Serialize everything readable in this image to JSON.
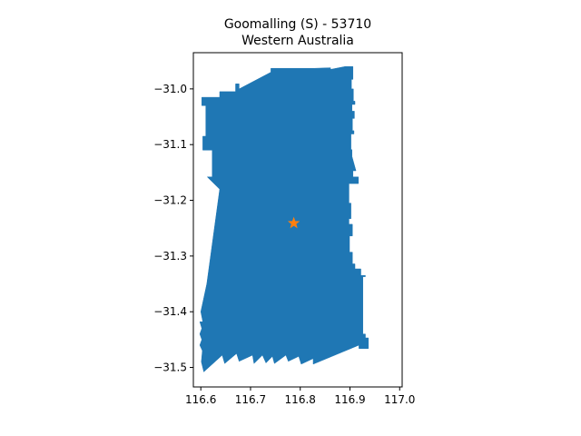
{
  "title": {
    "line1": "Goomalling (S) - 53710",
    "line2": "Western Australia"
  },
  "colors": {
    "region_fill": "#1f77b4",
    "marker": "#ff7f0e",
    "axes": "#000000",
    "background": "#ffffff"
  },
  "chart_data": {
    "type": "map",
    "title": "Goomalling (S) - 53710\nWestern Australia",
    "xlim": [
      116.585,
      117.005
    ],
    "ylim": [
      -31.535,
      -30.935
    ],
    "xticks": [
      116.6,
      116.7,
      116.8,
      116.9,
      117.0
    ],
    "xtick_labels": [
      "116.6",
      "116.7",
      "116.8",
      "116.9",
      "117.0"
    ],
    "yticks": [
      -31.0,
      -31.1,
      -31.2,
      -31.3,
      -31.4,
      -31.5
    ],
    "ytick_labels": [
      "−31.0",
      "−31.1",
      "−31.2",
      "−31.3",
      "−31.4",
      "−31.5"
    ],
    "grid": false,
    "region": {
      "name": "Goomalling (S)",
      "boundary": [
        [
          116.602,
          -31.015
        ],
        [
          116.638,
          -31.015
        ],
        [
          116.638,
          -31.005
        ],
        [
          116.67,
          -31.005
        ],
        [
          116.67,
          -30.991
        ],
        [
          116.677,
          -30.991
        ],
        [
          116.677,
          -31.0
        ],
        [
          116.741,
          -30.97
        ],
        [
          116.741,
          -30.963
        ],
        [
          116.829,
          -30.963
        ],
        [
          116.861,
          -30.962
        ],
        [
          116.861,
          -30.965
        ],
        [
          116.89,
          -30.96
        ],
        [
          116.906,
          -30.96
        ],
        [
          116.906,
          -30.983
        ],
        [
          116.903,
          -30.983
        ],
        [
          116.903,
          -31.0
        ],
        [
          116.907,
          -31.0
        ],
        [
          116.907,
          -31.022
        ],
        [
          116.91,
          -31.022
        ],
        [
          116.91,
          -31.028
        ],
        [
          116.904,
          -31.028
        ],
        [
          116.904,
          -31.04
        ],
        [
          116.909,
          -31.04
        ],
        [
          116.909,
          -31.053
        ],
        [
          116.905,
          -31.053
        ],
        [
          116.905,
          -31.075
        ],
        [
          116.908,
          -31.075
        ],
        [
          116.908,
          -31.081
        ],
        [
          116.902,
          -31.081
        ],
        [
          116.902,
          -31.109
        ],
        [
          116.904,
          -31.109
        ],
        [
          116.904,
          -31.121
        ],
        [
          116.912,
          -31.147
        ],
        [
          116.906,
          -31.147
        ],
        [
          116.906,
          -31.158
        ],
        [
          116.917,
          -31.158
        ],
        [
          116.917,
          -31.17
        ],
        [
          116.898,
          -31.17
        ],
        [
          116.898,
          -31.205
        ],
        [
          116.902,
          -31.205
        ],
        [
          116.902,
          -31.233
        ],
        [
          116.898,
          -31.233
        ],
        [
          116.898,
          -31.243
        ],
        [
          116.905,
          -31.243
        ],
        [
          116.905,
          -31.264
        ],
        [
          116.899,
          -31.264
        ],
        [
          116.899,
          -31.293
        ],
        [
          116.905,
          -31.293
        ],
        [
          116.905,
          -31.314
        ],
        [
          116.91,
          -31.314
        ],
        [
          116.91,
          -31.323
        ],
        [
          116.922,
          -31.323
        ],
        [
          116.922,
          -31.335
        ],
        [
          116.931,
          -31.335
        ],
        [
          116.931,
          -31.337
        ],
        [
          116.926,
          -31.337
        ],
        [
          116.926,
          -31.44
        ],
        [
          116.931,
          -31.44
        ],
        [
          116.931,
          -31.447
        ],
        [
          116.937,
          -31.447
        ],
        [
          116.937,
          -31.466
        ],
        [
          116.918,
          -31.466
        ],
        [
          116.918,
          -31.46
        ],
        [
          116.826,
          -31.494
        ],
        [
          116.826,
          -31.484
        ],
        [
          116.802,
          -31.494
        ],
        [
          116.797,
          -31.48
        ],
        [
          116.776,
          -31.489
        ],
        [
          116.771,
          -31.478
        ],
        [
          116.748,
          -31.493
        ],
        [
          116.744,
          -31.48
        ],
        [
          116.731,
          -31.492
        ],
        [
          116.724,
          -31.478
        ],
        [
          116.707,
          -31.493
        ],
        [
          116.704,
          -31.478
        ],
        [
          116.677,
          -31.489
        ],
        [
          116.672,
          -31.475
        ],
        [
          116.648,
          -31.493
        ],
        [
          116.643,
          -31.478
        ],
        [
          116.606,
          -31.508
        ],
        [
          116.601,
          -31.49
        ],
        [
          116.603,
          -31.47
        ],
        [
          116.598,
          -31.46
        ],
        [
          116.602,
          -31.45
        ],
        [
          116.598,
          -31.44
        ],
        [
          116.602,
          -31.43
        ],
        [
          116.598,
          -31.418
        ],
        [
          116.604,
          -31.418
        ],
        [
          116.6,
          -31.4
        ],
        [
          116.612,
          -31.35
        ],
        [
          116.638,
          -31.18
        ],
        [
          116.613,
          -31.158
        ],
        [
          116.623,
          -31.158
        ],
        [
          116.623,
          -31.11
        ],
        [
          116.604,
          -31.11
        ],
        [
          116.604,
          -31.085
        ],
        [
          116.61,
          -31.085
        ],
        [
          116.61,
          -31.03
        ],
        [
          116.602,
          -31.03
        ]
      ]
    },
    "marker": {
      "symbol": "star",
      "lon": 116.787,
      "lat": -31.241
    }
  }
}
